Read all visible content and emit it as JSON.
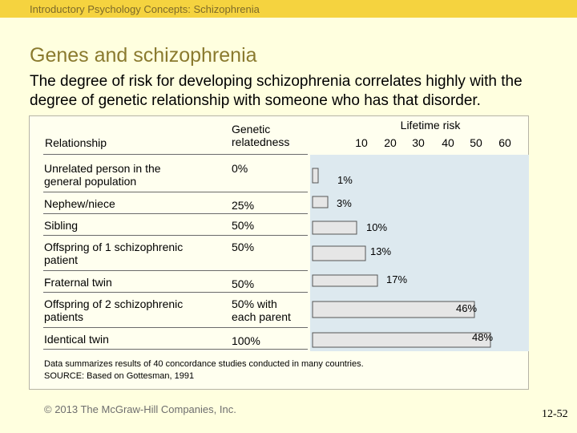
{
  "header": {
    "text": "Introductory Psychology Concepts: Schizophrenia"
  },
  "title": "Genes and schizophrenia",
  "subtitle": "The degree of risk for developing schizophrenia correlates highly with the degree of genetic relationship with someone who has that disorder.",
  "table": {
    "col_relationship": "Relationship",
    "col_genetic_line1": "Genetic",
    "col_genetic_line2": "relatedness",
    "rows": [
      {
        "relationship": [
          "Unrelated person in the",
          "general population"
        ],
        "relatedness": [
          "0%"
        ]
      },
      {
        "relationship": [
          "Nephew/niece"
        ],
        "relatedness": [
          "25%"
        ]
      },
      {
        "relationship": [
          "Sibling"
        ],
        "relatedness": [
          "50%"
        ]
      },
      {
        "relationship": [
          "Offspring of 1 schizophrenic",
          "patient"
        ],
        "relatedness": [
          "50%"
        ]
      },
      {
        "relationship": [
          "Fraternal twin"
        ],
        "relatedness": [
          "50%"
        ]
      },
      {
        "relationship": [
          "Offspring of 2 schizophrenic",
          "patients"
        ],
        "relatedness": [
          "50% with",
          "each parent"
        ]
      },
      {
        "relationship": [
          "Identical twin"
        ],
        "relatedness": [
          "100%"
        ]
      }
    ]
  },
  "chart_data": {
    "type": "bar",
    "orientation": "horizontal",
    "axis_title": "Lifetime risk",
    "ticks": [
      "10",
      "20",
      "30",
      "40",
      "50",
      "60"
    ],
    "xlim": [
      0,
      60
    ],
    "categories": [
      "Unrelated person in the general population",
      "Nephew/niece",
      "Sibling",
      "Offspring of 1 schizophrenic patient",
      "Fraternal twin",
      "Offspring of 2 schizophrenic patients",
      "Identical twin"
    ],
    "values": [
      1,
      3,
      10,
      13,
      17,
      46,
      48
    ],
    "value_labels": [
      "1%",
      "3%",
      "10%",
      "13%",
      "17%",
      "46%",
      "48%"
    ],
    "bar_color": "#e6e6e6",
    "bar_edge": "#555555",
    "plot_background": "#dde9ef",
    "grid": false
  },
  "footnote": {
    "line1": "Data summarizes results of 40 concordance studies conducted in many countries.",
    "line2": "SOURCE: Based on Gottesman, 1991"
  },
  "copyright": "© 2013 The McGraw-Hill Companies, Inc.",
  "slide_number": "12-52"
}
